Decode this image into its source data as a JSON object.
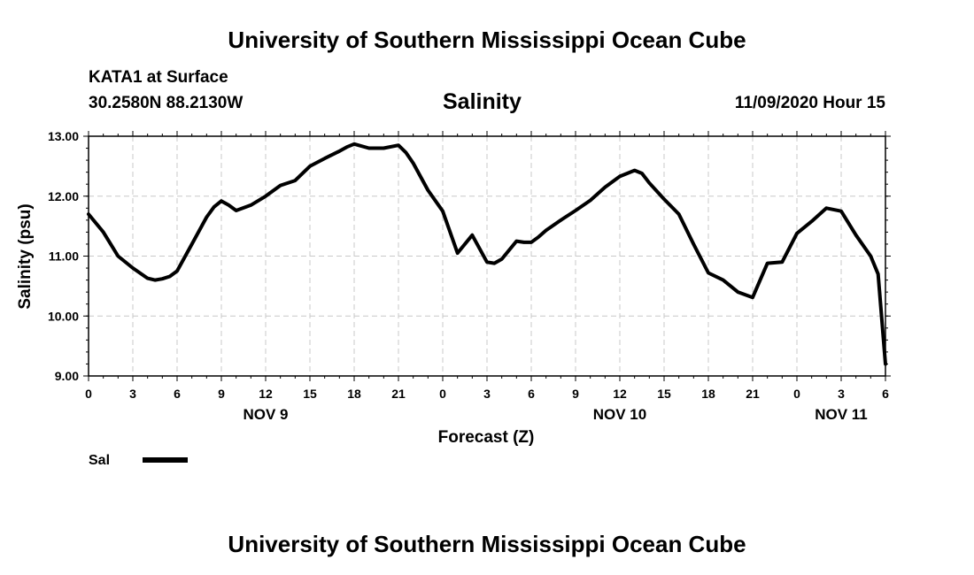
{
  "header": {
    "top_title": "University of Southern Mississippi Ocean Cube",
    "bottom_title": "University of Southern Mississippi Ocean Cube",
    "station": "KATA1 at Surface",
    "coords": "30.2580N 88.2130W",
    "datetime": "11/09/2020 Hour 15"
  },
  "legend": {
    "label": "Sal",
    "color": "#000000"
  },
  "colors": {
    "line": "#000000",
    "grid": "#c8c8c8"
  },
  "chart_data": {
    "type": "line",
    "title": "Salinity",
    "xlabel": "Forecast (Z)",
    "ylabel": "Salinity (psu)",
    "ylim": [
      9,
      13
    ],
    "xlim": [
      0,
      54
    ],
    "grid": true,
    "y_ticks": [
      "9.00",
      "10.00",
      "11.00",
      "12.00",
      "13.00"
    ],
    "x_ticks": [
      "0",
      "3",
      "6",
      "9",
      "12",
      "15",
      "18",
      "21",
      "0",
      "3",
      "6",
      "9",
      "12",
      "15",
      "18",
      "21",
      "0",
      "3",
      "6"
    ],
    "day_labels": [
      {
        "label": "NOV 9",
        "at_hour": 12
      },
      {
        "label": "NOV 10",
        "at_hour": 36
      },
      {
        "label": "NOV 11",
        "at_hour": 51
      }
    ],
    "series": [
      {
        "name": "Sal",
        "x": [
          0,
          1,
          2,
          3,
          4,
          4.5,
          5,
          5.5,
          6,
          7,
          8,
          8.5,
          9,
          9.5,
          10,
          11,
          12,
          13,
          14,
          15,
          16,
          17,
          17.5,
          18,
          19,
          20,
          21,
          21.5,
          22,
          23,
          24,
          25,
          26,
          27,
          27.5,
          28,
          29,
          29.5,
          30,
          30.5,
          31,
          32,
          33,
          34,
          35,
          36,
          37,
          37.5,
          38,
          39,
          40,
          41,
          42,
          43,
          44,
          45,
          46,
          47,
          48,
          49,
          50,
          51,
          51.5,
          52,
          53,
          53.5,
          54
        ],
        "values": [
          11.7,
          11.4,
          11.0,
          10.8,
          10.63,
          10.6,
          10.62,
          10.66,
          10.75,
          11.2,
          11.65,
          11.82,
          11.92,
          11.85,
          11.76,
          11.85,
          12.0,
          12.18,
          12.26,
          12.5,
          12.63,
          12.75,
          12.82,
          12.87,
          12.8,
          12.8,
          12.85,
          12.73,
          12.55,
          12.1,
          11.75,
          11.05,
          11.35,
          10.9,
          10.88,
          10.95,
          11.25,
          11.23,
          11.23,
          11.32,
          11.43,
          11.6,
          11.76,
          11.93,
          12.15,
          12.33,
          12.43,
          12.38,
          12.22,
          11.95,
          11.7,
          11.2,
          10.72,
          10.6,
          10.4,
          10.31,
          10.88,
          10.9,
          11.38,
          11.58,
          11.8,
          11.75,
          11.55,
          11.35,
          11.0,
          10.7,
          9.2
        ]
      }
    ]
  }
}
